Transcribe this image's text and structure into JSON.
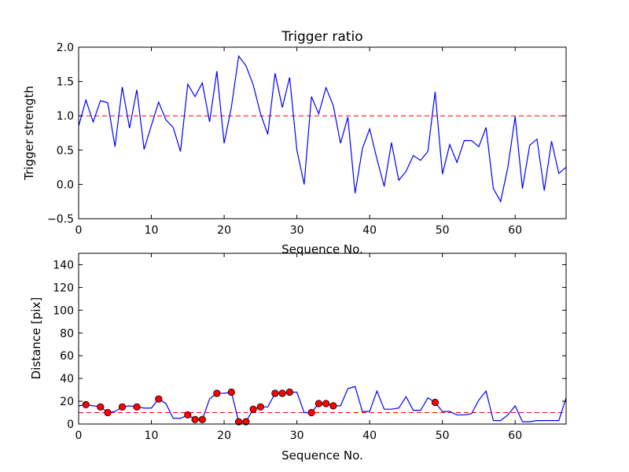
{
  "chart_data": [
    {
      "type": "line",
      "title": "Trigger ratio",
      "xlabel": "Sequence No.",
      "ylabel": "Trigger strength",
      "xlim": [
        0,
        67
      ],
      "ylim": [
        -0.5,
        2.0
      ],
      "xticks": [
        0,
        10,
        20,
        30,
        40,
        50,
        60
      ],
      "yticks": [
        -0.5,
        0.0,
        0.5,
        1.0,
        1.5,
        2.0
      ],
      "ytick_labels": [
        "−0.5",
        "0.0",
        "0.5",
        "1.0",
        "1.5",
        "2.0"
      ],
      "threshold": 1.0,
      "line_color": "#0000ff",
      "threshold_color": "#ff0000",
      "x": [
        0,
        1,
        2,
        3,
        4,
        5,
        6,
        7,
        8,
        9,
        10,
        11,
        12,
        13,
        14,
        15,
        16,
        17,
        18,
        19,
        20,
        21,
        22,
        23,
        24,
        25,
        26,
        27,
        28,
        29,
        30,
        31,
        32,
        33,
        34,
        35,
        36,
        37,
        38,
        39,
        40,
        41,
        42,
        43,
        44,
        45,
        46,
        47,
        48,
        49,
        50,
        51,
        52,
        53,
        54,
        55,
        56,
        57,
        58,
        59,
        60,
        61,
        62,
        63,
        64,
        65,
        66,
        67
      ],
      "values": [
        0.85,
        1.23,
        0.91,
        1.22,
        1.19,
        0.55,
        1.42,
        0.82,
        1.38,
        0.51,
        0.86,
        1.2,
        0.94,
        0.83,
        0.48,
        1.46,
        1.28,
        1.48,
        0.91,
        1.65,
        0.6,
        1.13,
        1.87,
        1.73,
        1.45,
        1.03,
        0.73,
        1.62,
        1.12,
        1.56,
        0.5,
        0.0,
        1.28,
        1.03,
        1.41,
        1.15,
        0.6,
        0.98,
        -0.13,
        0.52,
        0.81,
        0.37,
        -0.03,
        0.61,
        0.06,
        0.19,
        0.42,
        0.35,
        0.48,
        1.35,
        0.15,
        0.58,
        0.32,
        0.64,
        0.64,
        0.55,
        0.83,
        -0.06,
        -0.25,
        0.25,
        0.99,
        -0.06,
        0.57,
        0.66,
        -0.09,
        0.63,
        0.16,
        0.25
      ]
    },
    {
      "type": "line",
      "title": "",
      "xlabel": "Sequence No.",
      "ylabel": "Distance [pix]",
      "xlim": [
        0,
        67
      ],
      "ylim": [
        0,
        150
      ],
      "xticks": [
        0,
        10,
        20,
        30,
        40,
        50,
        60
      ],
      "yticks": [
        0,
        20,
        40,
        60,
        80,
        100,
        120,
        140
      ],
      "ytick_labels": [
        "0",
        "20",
        "40",
        "60",
        "80",
        "100",
        "120",
        "140"
      ],
      "thresholds": [
        10,
        150
      ],
      "line_color": "#0000ff",
      "threshold_color": "#ff0000",
      "marker_color": "#ff0000",
      "x": [
        0,
        1,
        2,
        3,
        4,
        5,
        6,
        7,
        8,
        9,
        10,
        11,
        12,
        13,
        14,
        15,
        16,
        17,
        18,
        19,
        20,
        21,
        22,
        23,
        24,
        25,
        26,
        27,
        28,
        29,
        30,
        31,
        32,
        33,
        34,
        35,
        36,
        37,
        38,
        39,
        40,
        41,
        42,
        43,
        44,
        45,
        46,
        47,
        48,
        49,
        50,
        51,
        52,
        53,
        54,
        55,
        56,
        57,
        58,
        59,
        60,
        61,
        62,
        63,
        64,
        65,
        66,
        67
      ],
      "values": [
        16,
        17,
        16,
        15,
        10,
        11,
        15,
        16,
        15,
        14,
        14,
        22,
        18,
        5,
        5,
        8,
        4,
        4,
        22,
        27,
        27,
        28,
        2,
        2,
        13,
        15,
        15,
        27,
        27,
        28,
        28,
        10,
        10,
        18,
        18,
        16,
        16,
        31,
        33,
        11,
        11,
        29,
        13,
        13,
        14,
        24,
        12,
        12,
        23,
        19,
        11,
        11,
        8,
        8,
        9,
        21,
        29,
        3,
        3,
        8,
        16,
        2,
        2,
        3,
        3,
        3,
        3,
        23
      ],
      "marked_points": [
        1,
        3,
        4,
        6,
        8,
        11,
        15,
        16,
        17,
        19,
        21,
        22,
        23,
        24,
        25,
        27,
        28,
        29,
        32,
        33,
        34,
        35,
        49
      ]
    }
  ]
}
